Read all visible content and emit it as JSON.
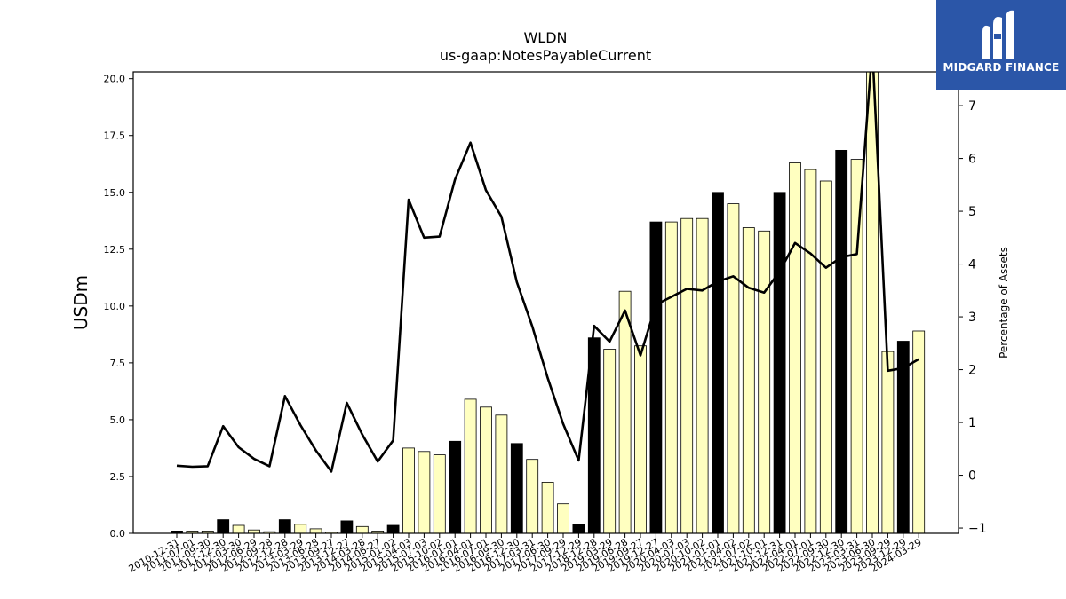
{
  "chart_data": {
    "type": "bar",
    "title": "WLDN",
    "subtitle": "us-gaap:NotesPayableCurrent",
    "ylabel": "USDm",
    "y2label": "Percentage of Assets",
    "ylim": [
      0,
      20.3
    ],
    "y2lim": [
      -1.1,
      7.64
    ],
    "yticks": [
      0.0,
      2.5,
      5.0,
      7.5,
      10.0,
      12.5,
      15.0,
      17.5,
      20.0
    ],
    "yticks_labels": [
      "0.0",
      "2.5",
      "5.0",
      "7.5",
      "10.0",
      "12.5",
      "15.0",
      "17.5",
      "20.0"
    ],
    "y2ticks": [
      -1,
      0,
      1,
      2,
      3,
      4,
      5,
      6,
      7
    ],
    "y2ticks_labels": [
      "−1",
      "0",
      "1",
      "2",
      "3",
      "4",
      "5",
      "6",
      "7"
    ],
    "categories": [
      "2010-12-31",
      "2011-07-01",
      "2011-09-30",
      "2011-12-30",
      "2012-03-30",
      "2012-06-29",
      "2012-09-28",
      "2012-12-28",
      "2013-03-29",
      "2013-06-28",
      "2013-09-27",
      "2013-12-27",
      "2014-03-28",
      "2014-06-27",
      "2015-01-02",
      "2015-04-03",
      "2015-07-03",
      "2015-10-02",
      "2016-01-01",
      "2016-04-01",
      "2016-07-01",
      "2016-09-30",
      "2016-12-30",
      "2017-03-31",
      "2017-06-30",
      "2017-09-29",
      "2017-12-29",
      "2018-12-28",
      "2019-03-29",
      "2019-06-28",
      "2019-09-27",
      "2019-12-27",
      "2020-04-03",
      "2020-07-03",
      "2020-10-02",
      "2021-01-01",
      "2021-04-02",
      "2021-07-02",
      "2021-10-01",
      "2021-12-31",
      "2022-04-01",
      "2022-07-01",
      "2022-09-30",
      "2022-12-30",
      "2023-03-31",
      "2023-06-30",
      "2023-09-29",
      "2023-12-29",
      "2024-03-29"
    ],
    "series": [
      {
        "kind": "bar",
        "values": [
          0.1,
          0.1,
          0.1,
          0.6,
          0.35,
          0.15,
          0.07,
          0.6,
          0.4,
          0.2,
          0.05,
          0.55,
          0.3,
          0.1,
          0.35,
          3.75,
          3.6,
          3.45,
          4.05,
          5.9,
          5.55,
          5.2,
          3.95,
          3.25,
          2.25,
          1.3,
          0.4,
          8.6,
          8.1,
          10.65,
          8.25,
          13.7,
          13.7,
          13.85,
          13.85,
          15.0,
          14.5,
          13.45,
          13.3,
          15.0,
          16.3,
          16.0,
          15.5,
          16.85,
          16.45,
          20.6,
          8.0,
          8.45,
          8.9
        ],
        "fill": [
          "#000000",
          "#ffffc0",
          "#ffffc0",
          "#000000",
          "#ffffc0",
          "#ffffc0",
          "#ffffc0",
          "#000000",
          "#ffffc0",
          "#ffffc0",
          "#ffffc0",
          "#000000",
          "#ffffc0",
          "#ffffc0",
          "#000000",
          "#ffffc0",
          "#ffffc0",
          "#ffffc0",
          "#000000",
          "#ffffc0",
          "#ffffc0",
          "#ffffc0",
          "#000000",
          "#ffffc0",
          "#ffffc0",
          "#ffffc0",
          "#000000",
          "#000000",
          "#ffffc0",
          "#ffffc0",
          "#ffffc0",
          "#000000",
          "#ffffc0",
          "#ffffc0",
          "#ffffc0",
          "#000000",
          "#ffffc0",
          "#ffffc0",
          "#ffffc0",
          "#000000",
          "#ffffc0",
          "#ffffc0",
          "#ffffc0",
          "#000000",
          "#ffffc0",
          "#ffffc0",
          "#ffffc0",
          "#000000",
          "#ffffc0"
        ]
      },
      {
        "kind": "line",
        "axis": "right",
        "color": "#000000",
        "values": [
          0.18,
          0.16,
          0.17,
          0.93,
          0.53,
          0.31,
          0.17,
          1.5,
          0.95,
          0.47,
          0.07,
          1.37,
          0.77,
          0.26,
          0.66,
          5.22,
          4.5,
          4.52,
          5.6,
          6.3,
          5.4,
          4.9,
          3.66,
          2.82,
          1.84,
          0.97,
          0.28,
          2.83,
          2.53,
          3.12,
          2.27,
          3.23,
          3.38,
          3.53,
          3.5,
          3.67,
          3.77,
          3.55,
          3.46,
          3.86,
          4.4,
          4.2,
          3.93,
          4.13,
          4.19,
          8.1,
          1.98,
          2.03,
          2.2
        ]
      }
    ],
    "grid": false,
    "legend": "none"
  },
  "branding": {
    "logo_text": "MIDGARD FINANCE",
    "logo_color": "#2b56a8"
  }
}
